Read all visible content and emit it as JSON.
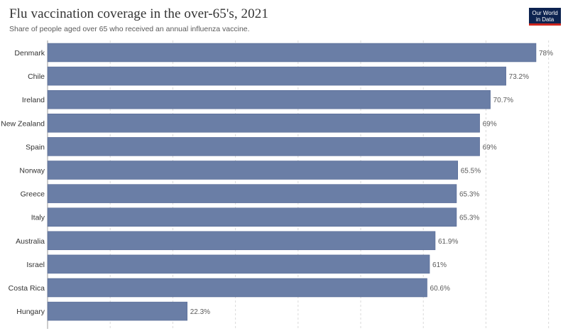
{
  "header": {
    "title": "Flu vaccination coverage in the over-65's, 2021",
    "subtitle": "Share of people aged over 65 who received an annual influenza vaccine.",
    "logo_line1": "Our World",
    "logo_line2": "in Data"
  },
  "colors": {
    "bar": "#6a7ea6",
    "bar_stroke": "#4f6290",
    "grid": "#dadada",
    "label": "#333333",
    "value": "#5b5b5b",
    "logo_bg": "#0d2350",
    "logo_accent": "#ce261e"
  },
  "chart_data": {
    "type": "bar",
    "orientation": "horizontal",
    "categories": [
      "Denmark",
      "Chile",
      "Ireland",
      "New Zealand",
      "Spain",
      "Norway",
      "Greece",
      "Italy",
      "Australia",
      "Israel",
      "Costa Rica",
      "Hungary"
    ],
    "values": [
      78,
      73.2,
      70.7,
      69,
      69,
      65.5,
      65.3,
      65.3,
      61.9,
      61,
      60.6,
      22.3
    ],
    "value_labels": [
      "78%",
      "73.2%",
      "70.7%",
      "69%",
      "69%",
      "65.5%",
      "65.3%",
      "65.3%",
      "61.9%",
      "61%",
      "60.6%",
      "22.3%"
    ],
    "xlim": [
      0,
      80
    ],
    "grid": true
  }
}
